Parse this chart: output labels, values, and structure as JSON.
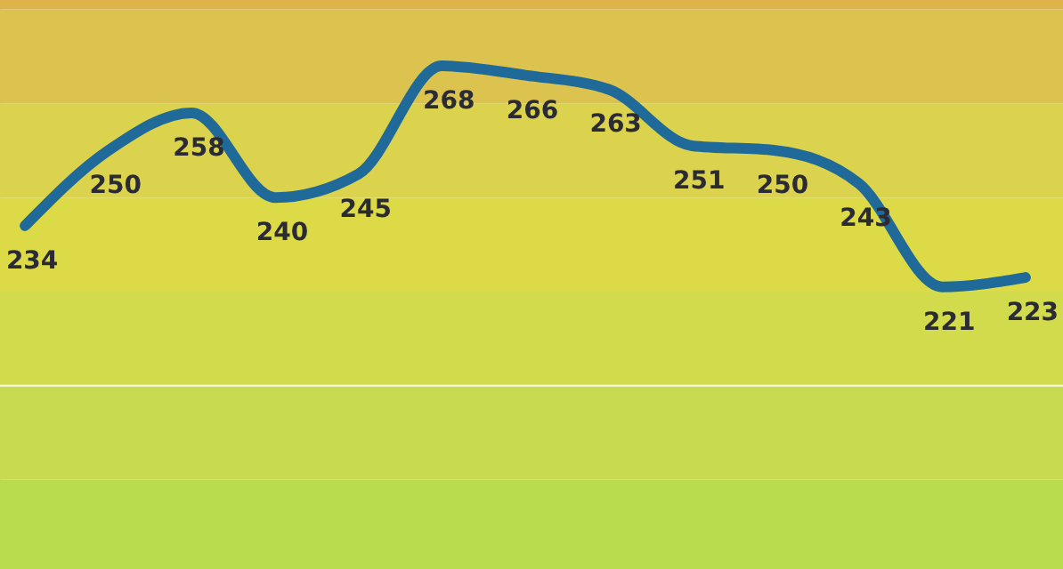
{
  "chart_data": {
    "type": "line",
    "categories": [
      null,
      null,
      null,
      null,
      null,
      null,
      null,
      null,
      null,
      null,
      null,
      null,
      null
    ],
    "series": [
      {
        "color": "#1f6a99",
        "values": [
          234,
          250,
          258,
          240,
          245,
          268,
          266,
          263,
          251,
          250,
          243,
          221,
          223
        ]
      }
    ],
    "ylim": [
      161,
      282
    ],
    "tick_labels": false,
    "data_labels": true,
    "marker": "none",
    "line_style": "solid",
    "bands": [
      {
        "axis": "y",
        "from": 161,
        "to": 180,
        "color": "#b8dc4d"
      },
      {
        "axis": "y",
        "from": 180,
        "to": 200,
        "color": "#c8da4f"
      },
      {
        "axis": "y",
        "from": 200,
        "to": 220,
        "color": "#d2db4b"
      },
      {
        "axis": "y",
        "from": 220,
        "to": 240,
        "color": "#dcdb47"
      },
      {
        "axis": "y",
        "from": 240,
        "to": 260,
        "color": "#dbd24e"
      },
      {
        "axis": "y",
        "from": 260,
        "to": 280,
        "color": "#dcc24e"
      },
      {
        "axis": "y",
        "from": 280,
        "to": 282,
        "color": "#ddb34a"
      }
    ],
    "ref_lines": [
      {
        "axis": "y",
        "value": 200,
        "color": "#ffffff",
        "line_style": "solid"
      }
    ]
  }
}
